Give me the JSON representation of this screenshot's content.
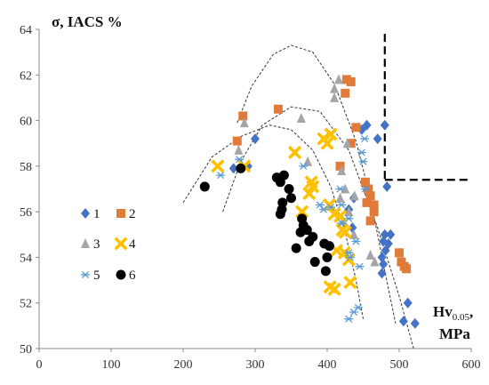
{
  "chart_data": {
    "type": "scatter",
    "title": "",
    "ylabel": "σ, IACS %",
    "xlabel_main": "Hv",
    "xlabel_sub": "0.05",
    "xlabel_tail": ",",
    "xlabel_unit": "MPa",
    "xlim": [
      0,
      600
    ],
    "ylim": [
      50,
      64
    ],
    "xticks": [
      "0",
      "100",
      "200",
      "300",
      "400",
      "500",
      "600"
    ],
    "yticks": [
      "50",
      "52",
      "54",
      "56",
      "58",
      "60",
      "62",
      "64"
    ],
    "grid": false,
    "legend_position": "left",
    "colors": {
      "s1": "#4472C4",
      "s2": "#E07B39",
      "s3": "#A5A5A5",
      "s4": "#FFC000",
      "s5": "#5B9BD5",
      "s6": "#000000",
      "axis": "#888888",
      "curves": "#333333"
    },
    "series": [
      {
        "name": "1",
        "marker": "diamond",
        "color": "#4472C4",
        "points": [
          [
            300,
            59.2
          ],
          [
            290,
            58.0
          ],
          [
            270,
            57.9
          ],
          [
            437,
            56.6
          ],
          [
            430,
            56.1
          ],
          [
            435,
            55.3
          ],
          [
            448,
            59.6
          ],
          [
            455,
            59.8
          ],
          [
            470,
            59.2
          ],
          [
            480,
            59.8
          ],
          [
            483,
            57.1
          ],
          [
            480,
            55.0
          ],
          [
            478,
            54.7
          ],
          [
            481,
            54.3
          ],
          [
            476,
            54.0
          ],
          [
            488,
            55.0
          ],
          [
            485,
            54.6
          ],
          [
            478,
            53.7
          ],
          [
            476,
            53.3
          ],
          [
            512,
            52.0
          ],
          [
            506,
            51.2
          ],
          [
            522,
            51.1
          ]
        ]
      },
      {
        "name": "2",
        "marker": "square",
        "color": "#E07B39",
        "points": [
          [
            283,
            60.2
          ],
          [
            275,
            59.1
          ],
          [
            332,
            60.5
          ],
          [
            427,
            61.8
          ],
          [
            433,
            61.7
          ],
          [
            425,
            61.2
          ],
          [
            440,
            59.7
          ],
          [
            433,
            59.0
          ],
          [
            418,
            58.0
          ],
          [
            453,
            57.3
          ],
          [
            457,
            57.0
          ],
          [
            460,
            56.7
          ],
          [
            455,
            56.4
          ],
          [
            465,
            56.3
          ],
          [
            465,
            56.0
          ],
          [
            460,
            55.6
          ],
          [
            500,
            54.2
          ],
          [
            507,
            53.6
          ],
          [
            503,
            53.8
          ],
          [
            510,
            53.5
          ]
        ]
      },
      {
        "name": "3",
        "marker": "triangle",
        "color": "#A5A5A5",
        "points": [
          [
            277,
            58.7
          ],
          [
            285,
            59.9
          ],
          [
            364,
            60.1
          ],
          [
            410,
            61.4
          ],
          [
            416,
            61.8
          ],
          [
            410,
            61.0
          ],
          [
            428,
            59.0
          ],
          [
            420,
            57.8
          ],
          [
            425,
            57.0
          ],
          [
            418,
            56.6
          ],
          [
            430,
            56.0
          ],
          [
            422,
            55.6
          ],
          [
            438,
            56.7
          ],
          [
            437,
            55.0
          ],
          [
            460,
            54.1
          ],
          [
            466,
            53.8
          ],
          [
            373,
            58.2
          ]
        ]
      },
      {
        "name": "4",
        "marker": "cross-box",
        "color": "#FFC000",
        "points": [
          [
            248,
            58.0
          ],
          [
            285,
            58.0
          ],
          [
            355,
            58.6
          ],
          [
            378,
            57.3
          ],
          [
            375,
            56.8
          ],
          [
            380,
            57.1
          ],
          [
            365,
            56.0
          ],
          [
            395,
            59.2
          ],
          [
            405,
            59.4
          ],
          [
            400,
            59.0
          ],
          [
            403,
            56.3
          ],
          [
            410,
            55.9
          ],
          [
            418,
            55.8
          ],
          [
            425,
            55.1
          ],
          [
            421,
            55.2
          ],
          [
            413,
            54.3
          ],
          [
            424,
            54.2
          ],
          [
            430,
            53.9
          ],
          [
            410,
            52.6
          ],
          [
            404,
            52.7
          ],
          [
            432,
            52.9
          ]
        ]
      },
      {
        "name": "5",
        "marker": "asterisk",
        "color": "#5B9BD5",
        "points": [
          [
            252,
            57.6
          ],
          [
            278,
            58.3
          ],
          [
            367,
            58.0
          ],
          [
            390,
            56.3
          ],
          [
            395,
            56.1
          ],
          [
            405,
            56.2
          ],
          [
            418,
            57.0
          ],
          [
            420,
            56.3
          ],
          [
            420,
            55.5
          ],
          [
            430,
            55.7
          ],
          [
            430,
            54.2
          ],
          [
            440,
            54.7
          ],
          [
            432,
            54.0
          ],
          [
            445,
            53.6
          ],
          [
            448,
            58.6
          ],
          [
            450,
            58.2
          ],
          [
            452,
            59.2
          ],
          [
            430,
            51.3
          ],
          [
            437,
            51.6
          ],
          [
            443,
            51.8
          ],
          [
            453,
            57.0
          ]
        ]
      },
      {
        "name": "6",
        "marker": "circle",
        "color": "#000000",
        "points": [
          [
            230,
            57.1
          ],
          [
            280,
            57.9
          ],
          [
            330,
            57.5
          ],
          [
            340,
            57.6
          ],
          [
            335,
            57.3
          ],
          [
            347,
            57.0
          ],
          [
            350,
            56.6
          ],
          [
            338,
            56.4
          ],
          [
            337,
            56.1
          ],
          [
            335,
            55.9
          ],
          [
            365,
            55.7
          ],
          [
            367,
            55.4
          ],
          [
            372,
            55.2
          ],
          [
            380,
            54.9
          ],
          [
            375,
            54.7
          ],
          [
            363,
            55.1
          ],
          [
            357,
            54.4
          ],
          [
            396,
            54.6
          ],
          [
            403,
            54.5
          ],
          [
            400,
            54.0
          ],
          [
            383,
            53.8
          ],
          [
            398,
            53.4
          ]
        ]
      }
    ],
    "legend": [
      {
        "label": "1",
        "series": 0
      },
      {
        "label": "2",
        "series": 1
      },
      {
        "label": "3",
        "series": 2
      },
      {
        "label": "4",
        "series": 3
      },
      {
        "label": "5",
        "series": 4
      },
      {
        "label": "6",
        "series": 5
      }
    ],
    "fit_curves": [
      {
        "type": "polyline",
        "points": [
          [
            200,
            56.4
          ],
          [
            240,
            58.4
          ],
          [
            280,
            59.3
          ],
          [
            320,
            59.8
          ],
          [
            350,
            59.6
          ],
          [
            380,
            58.7
          ],
          [
            405,
            57.1
          ],
          [
            425,
            55.1
          ],
          [
            440,
            53.0
          ],
          [
            450,
            51.3
          ]
        ]
      },
      {
        "type": "polyline",
        "points": [
          [
            275,
            59.9
          ],
          [
            295,
            61.5
          ],
          [
            325,
            62.9
          ],
          [
            350,
            63.3
          ],
          [
            380,
            63.0
          ],
          [
            410,
            61.6
          ],
          [
            440,
            59.1
          ],
          [
            460,
            56.6
          ],
          [
            480,
            53.4
          ],
          [
            495,
            51.1
          ]
        ]
      },
      {
        "type": "polyline",
        "points": [
          [
            255,
            56.0
          ],
          [
            280,
            58.2
          ],
          [
            310,
            59.8
          ],
          [
            350,
            60.6
          ],
          [
            390,
            60.4
          ],
          [
            430,
            58.7
          ],
          [
            470,
            55.3
          ],
          [
            500,
            52.3
          ],
          [
            520,
            50.0
          ]
        ]
      }
    ],
    "threshold_lines": [
      {
        "from": [
          480,
          63.8
        ],
        "to": [
          480,
          57.4
        ]
      },
      {
        "from": [
          480,
          57.4
        ],
        "to": [
          600,
          57.4
        ]
      }
    ]
  }
}
